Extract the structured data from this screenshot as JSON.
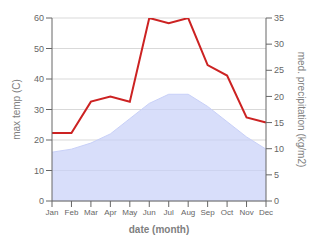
{
  "chart_data": {
    "type": "line",
    "categories": [
      "Jan",
      "Feb",
      "Mar",
      "Apr",
      "May",
      "Jun",
      "Jul",
      "Aug",
      "Sep",
      "Oct",
      "Nov",
      "Dec"
    ],
    "series": [
      {
        "type": "area",
        "color": "#c8d0f8",
        "values": [
          16,
          17,
          19,
          22,
          27,
          32,
          35,
          35,
          31,
          26,
          21,
          17
        ]
      },
      {
        "type": "line",
        "color": "#cc2222",
        "axis": "y2",
        "values": [
          13,
          13,
          19,
          20,
          19,
          35,
          34,
          35,
          26,
          24,
          16,
          15
        ]
      }
    ],
    "xlabel": "date (month)",
    "ylabel": "max temp (C)",
    "y2label": "med. precipitation (kg/m2)",
    "ylim": [
      0,
      60
    ],
    "yticks": [
      0,
      10,
      20,
      30,
      40,
      50,
      60
    ],
    "y2lim": [
      0,
      35
    ],
    "y2ticks": [
      0,
      5,
      10,
      15,
      20,
      25,
      30,
      35
    ],
    "grid": true
  }
}
